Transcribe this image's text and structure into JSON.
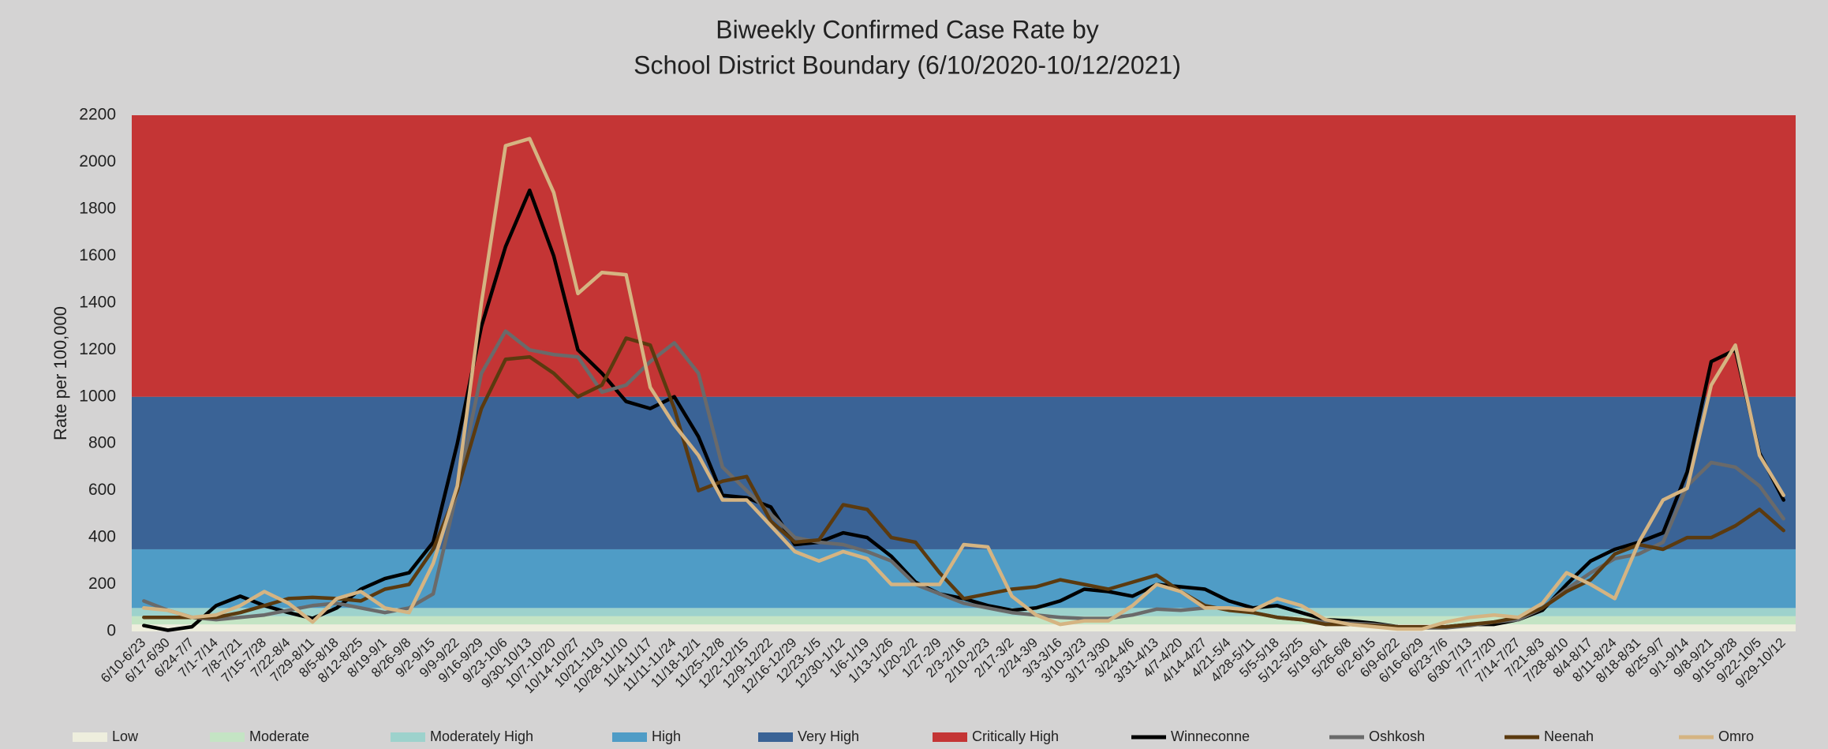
{
  "chart_data": {
    "type": "line",
    "title": [
      "Biweekly Confirmed Case Rate by",
      "School District Boundary (6/10/2020-10/12/2021)"
    ],
    "y_label": "Rate per 100,000",
    "categories": [
      "6/10-6/23",
      "6/17-6/30",
      "6/24-7/7",
      "7/1-7/14",
      "7/8-7/21",
      "7/15-7/28",
      "7/22-8/4",
      "7/29-8/11",
      "8/5-8/18",
      "8/12-8/25",
      "8/19-9/1",
      "8/26-9/8",
      "9/2-9/15",
      "9/9-9/22",
      "9/16-9/29",
      "9/23-10/6",
      "9/30-10/13",
      "10/7-10/20",
      "10/14-10/27",
      "10/21-11/3",
      "10/28-11/10",
      "11/4-11/17",
      "11/11-11/24",
      "11/18-12/1",
      "11/25-12/8",
      "12/2-12/15",
      "12/9-12/22",
      "12/16-12/29",
      "12/23-1/5",
      "12/30-1/12",
      "1/6-1/19",
      "1/13-1/26",
      "1/20-2/2",
      "1/27-2/9",
      "2/3-2/16",
      "2/10-2/23",
      "2/17-3/2",
      "2/24-3/9",
      "3/3-3/16",
      "3/10-3/23",
      "3/17-3/30",
      "3/24-4/6",
      "3/31-4/13",
      "4/7-4/20",
      "4/14-4/27",
      "4/21-5/4",
      "4/28-5/11",
      "5/5-5/18",
      "5/12-5/25",
      "5/19-6/1",
      "5/26-6/8",
      "6/2-6/15",
      "6/9-6/22",
      "6/16-6/29",
      "6/23-7/6",
      "6/30-7/13",
      "7/7-7/20",
      "7/14-7/27",
      "7/21-8/3",
      "7/28-8/10",
      "8/4-8/17",
      "8/11-8/24",
      "8/18-8/31",
      "8/25-9/7",
      "9/1-9/14",
      "9/8-9/21",
      "9/15-9/28",
      "9/22-10/5",
      "9/29-10/12"
    ],
    "bands": [
      {
        "name": "Low",
        "color": "#eeeedd",
        "range": [
          0,
          30
        ]
      },
      {
        "name": "Moderate",
        "color": "#c4e4c4",
        "range": [
          30,
          65
        ]
      },
      {
        "name": "Moderately High",
        "color": "#9dd2cc",
        "range": [
          65,
          100
        ]
      },
      {
        "name": "High",
        "color": "#4f9cc6",
        "range": [
          100,
          350
        ]
      },
      {
        "name": "Very High",
        "color": "#3a6396",
        "range": [
          350,
          1000
        ]
      },
      {
        "name": "Critically High",
        "color": "#c43535",
        "range": [
          1000,
          2200
        ]
      }
    ],
    "series": [
      {
        "name": "Winneconne",
        "color": "#000000",
        "values": [
          25,
          5,
          20,
          110,
          150,
          110,
          80,
          55,
          100,
          180,
          225,
          250,
          380,
          800,
          1300,
          1640,
          1880,
          1600,
          1200,
          1100,
          980,
          950,
          1000,
          830,
          580,
          570,
          530,
          370,
          380,
          420,
          400,
          320,
          210,
          160,
          140,
          110,
          90,
          100,
          130,
          180,
          170,
          150,
          200,
          190,
          180,
          130,
          100,
          110,
          80,
          50,
          45,
          35,
          20,
          15,
          20,
          30,
          30,
          50,
          90,
          200,
          300,
          350,
          380,
          420,
          680,
          1150,
          1200,
          760,
          560
        ]
      },
      {
        "name": "Oshkosh",
        "color": "#6a6a6a",
        "values": [
          130,
          90,
          60,
          50,
          60,
          70,
          90,
          110,
          120,
          100,
          80,
          100,
          160,
          600,
          1100,
          1280,
          1200,
          1180,
          1170,
          1020,
          1050,
          1150,
          1230,
          1100,
          700,
          600,
          500,
          400,
          380,
          370,
          340,
          300,
          200,
          160,
          120,
          100,
          80,
          70,
          60,
          55,
          55,
          70,
          95,
          90,
          100,
          100,
          80,
          60,
          50,
          40,
          35,
          30,
          20,
          15,
          15,
          25,
          40,
          50,
          100,
          180,
          250,
          310,
          330,
          380,
          620,
          720,
          700,
          620,
          480
        ]
      },
      {
        "name": "Neenah",
        "color": "#5b3a0f",
        "values": [
          60,
          60,
          60,
          60,
          80,
          110,
          140,
          145,
          140,
          130,
          180,
          200,
          350,
          600,
          950,
          1160,
          1170,
          1100,
          1000,
          1050,
          1250,
          1220,
          950,
          600,
          640,
          660,
          470,
          380,
          390,
          540,
          520,
          400,
          380,
          250,
          140,
          160,
          180,
          190,
          220,
          200,
          180,
          210,
          240,
          170,
          110,
          90,
          80,
          60,
          50,
          30,
          30,
          25,
          20,
          20,
          20,
          30,
          40,
          60,
          100,
          170,
          220,
          330,
          370,
          350,
          400,
          400,
          450,
          520,
          430
        ]
      },
      {
        "name": "Omro",
        "color": "#d5b482",
        "values": [
          100,
          90,
          60,
          70,
          110,
          170,
          120,
          40,
          140,
          170,
          100,
          80,
          290,
          620,
          1400,
          2070,
          2100,
          1870,
          1440,
          1530,
          1520,
          1040,
          880,
          750,
          560,
          560,
          450,
          340,
          300,
          340,
          310,
          200,
          200,
          200,
          370,
          360,
          150,
          70,
          30,
          45,
          45,
          110,
          200,
          170,
          100,
          100,
          90,
          140,
          110,
          50,
          30,
          20,
          10,
          10,
          40,
          60,
          70,
          60,
          120,
          250,
          200,
          140,
          380,
          560,
          610,
          1050,
          1220,
          750,
          580
        ]
      }
    ],
    "ylim": [
      0,
      2200
    ],
    "yticks": [
      0,
      200,
      400,
      600,
      800,
      1000,
      1200,
      1400,
      1600,
      1800,
      2000,
      2200
    ],
    "grid": false,
    "legend": "bottom"
  }
}
